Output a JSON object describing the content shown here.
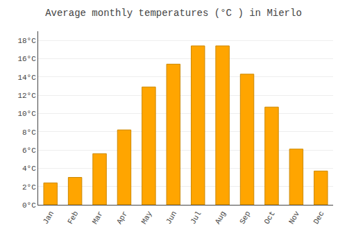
{
  "chart_data": {
    "type": "bar",
    "title": "Average monthly temperatures (°C ) in Mierlo",
    "categories": [
      "Jan",
      "Feb",
      "Mar",
      "Apr",
      "May",
      "Jun",
      "Jul",
      "Aug",
      "Sep",
      "Oct",
      "Nov",
      "Dec"
    ],
    "values": [
      2.4,
      3.0,
      5.6,
      8.2,
      12.9,
      15.4,
      17.4,
      17.4,
      14.3,
      10.7,
      6.1,
      3.7
    ],
    "color": "#ffa500",
    "ylim": [
      0,
      19
    ],
    "yticks": [
      {
        "value": 0,
        "label": "0°C"
      },
      {
        "value": 2,
        "label": "2°C"
      },
      {
        "value": 4,
        "label": "4°C"
      },
      {
        "value": 6,
        "label": "6°C"
      },
      {
        "value": 8,
        "label": "8°C"
      },
      {
        "value": 10,
        "label": "10°C"
      },
      {
        "value": 12,
        "label": "12°C"
      },
      {
        "value": 14,
        "label": "14°C"
      },
      {
        "value": 16,
        "label": "16°C"
      },
      {
        "value": 18,
        "label": "18°C"
      }
    ],
    "grid": true
  }
}
